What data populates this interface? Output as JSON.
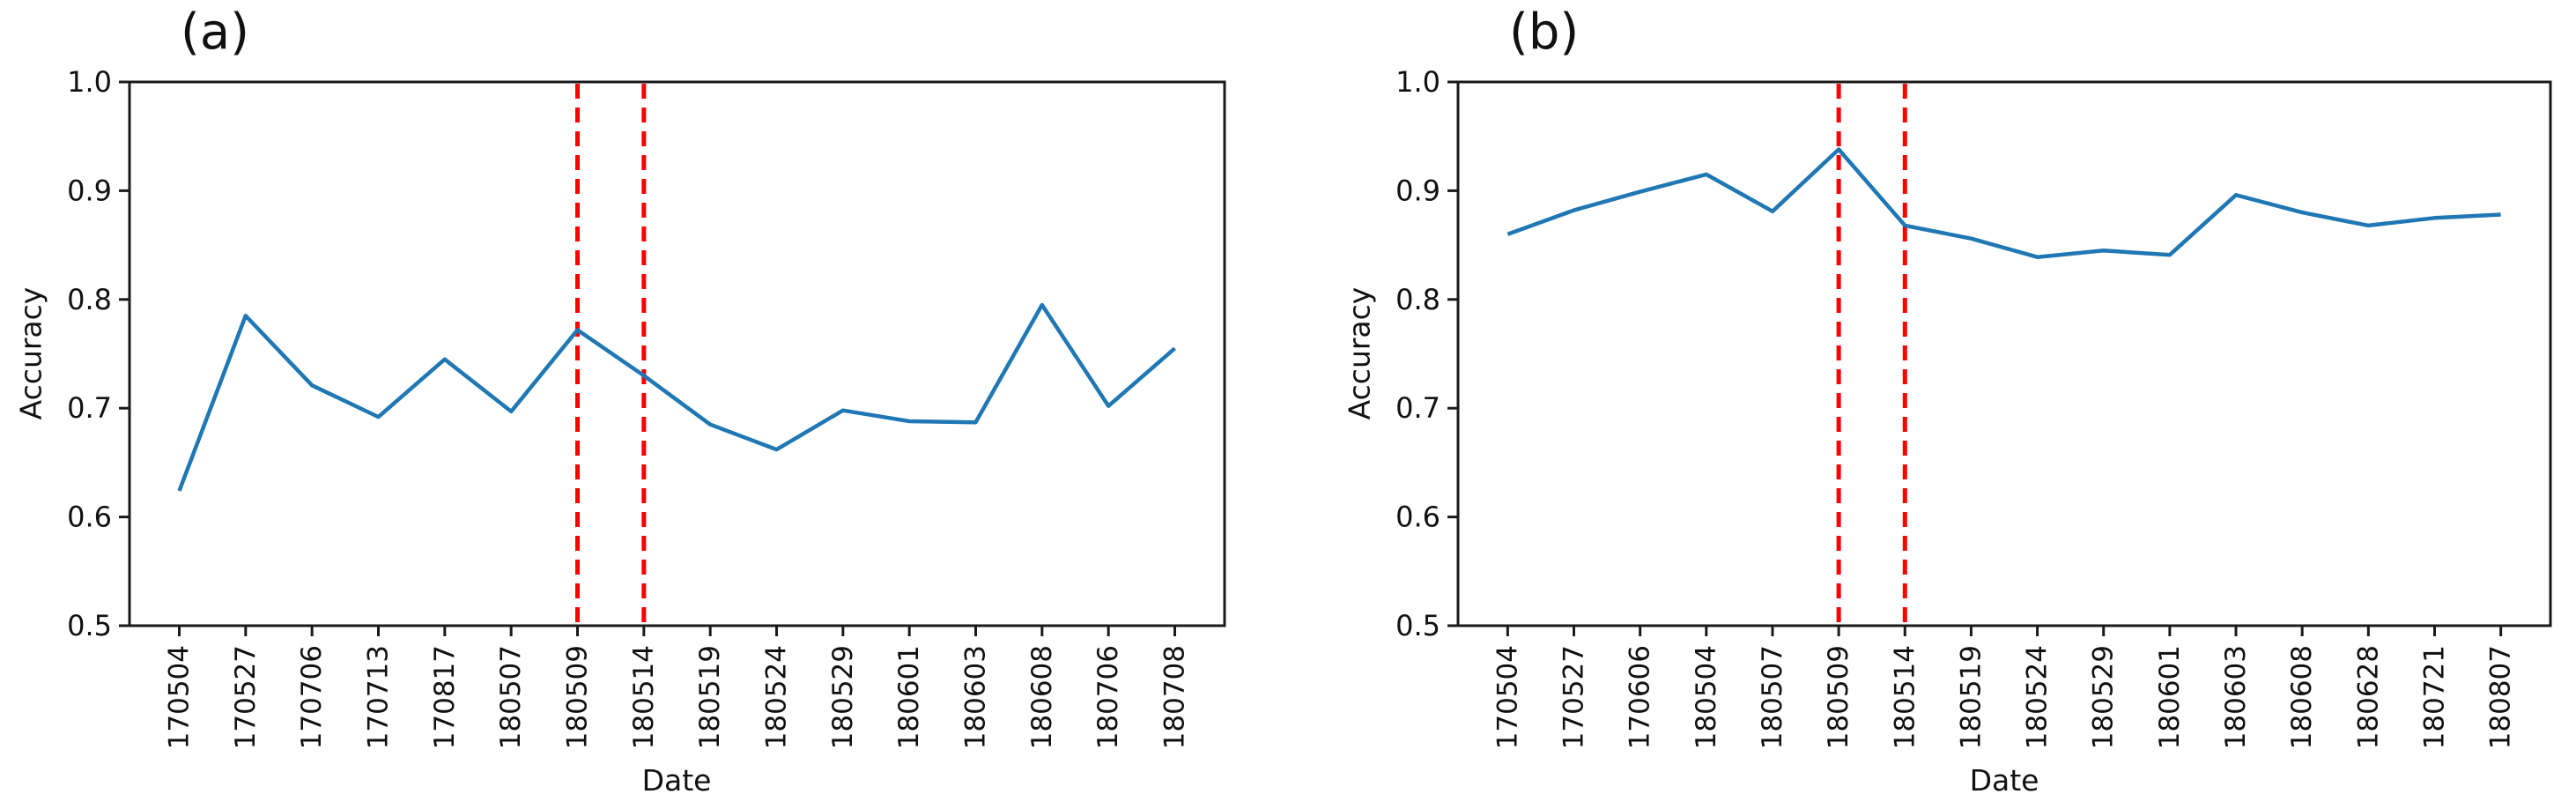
{
  "figure": {
    "background": "#ffffff",
    "axis_color": "#1a1a1a",
    "tick_label_color": "#111111"
  },
  "chart_data": [
    {
      "type": "line",
      "title": "(a)",
      "xlabel": "Date",
      "ylabel": "Accuracy",
      "ylim": [
        0.5,
        1.0
      ],
      "yticks": [
        "1.0",
        "0.9",
        "0.8",
        "0.7",
        "0.6",
        "0.5"
      ],
      "ytick_values": [
        1.0,
        0.9,
        0.8,
        0.7,
        0.6,
        0.5
      ],
      "grid": false,
      "legend": "none",
      "line_color": "#1f77b4",
      "categories": [
        "170504",
        "170527",
        "170706",
        "170713",
        "170817",
        "180507",
        "180509",
        "180514",
        "180519",
        "180524",
        "180529",
        "180601",
        "180603",
        "180608",
        "180706",
        "180708"
      ],
      "values": [
        0.624,
        0.785,
        0.721,
        0.692,
        0.745,
        0.697,
        0.772,
        0.73,
        0.685,
        0.662,
        0.698,
        0.688,
        0.687,
        0.795,
        0.702,
        0.755
      ],
      "vlines": {
        "categories": [
          "180509",
          "180514"
        ],
        "color": "#ff0000",
        "style": "dashed"
      }
    },
    {
      "type": "line",
      "title": "(b)",
      "xlabel": "Date",
      "ylabel": "Accuracy",
      "ylim": [
        0.5,
        1.0
      ],
      "yticks": [
        "1.0",
        "0.9",
        "0.8",
        "0.7",
        "0.6",
        "0.5"
      ],
      "ytick_values": [
        1.0,
        0.9,
        0.8,
        0.7,
        0.6,
        0.5
      ],
      "grid": false,
      "legend": "none",
      "line_color": "#1f77b4",
      "categories": [
        "170504",
        "170527",
        "170606",
        "180504",
        "180507",
        "180509",
        "180514",
        "180519",
        "180524",
        "180529",
        "180601",
        "180603",
        "180608",
        "180628",
        "180721",
        "180807"
      ],
      "values": [
        0.86,
        0.882,
        0.899,
        0.915,
        0.881,
        0.938,
        0.868,
        0.856,
        0.839,
        0.845,
        0.841,
        0.896,
        0.88,
        0.868,
        0.875,
        0.878
      ],
      "vlines": {
        "categories": [
          "180509",
          "180514"
        ],
        "color": "#ff0000",
        "style": "dashed"
      }
    }
  ]
}
